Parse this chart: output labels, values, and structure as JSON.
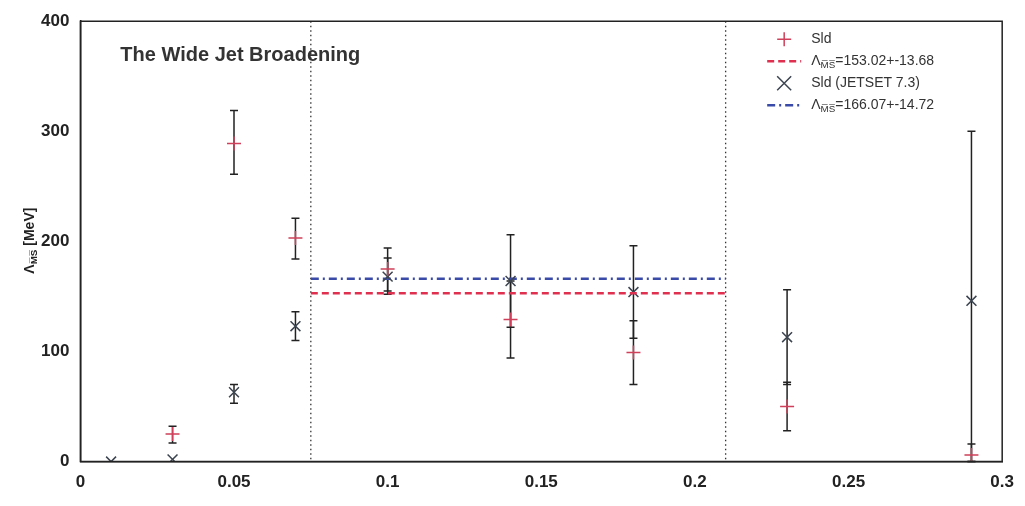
{
  "chart_data": {
    "type": "scatter",
    "title": "The Wide Jet Broadening",
    "ylabel": "Λ$_{M̅S̅}$ [MeV]",
    "xlim": [
      0,
      0.3
    ],
    "xticks": [
      0,
      0.05,
      0.1,
      0.15,
      0.2,
      0.25,
      0.3
    ],
    "ylim": [
      0,
      400
    ],
    "yticks": [
      0,
      100,
      200,
      300,
      400
    ],
    "grid": false,
    "legend": "top right",
    "series": [
      {
        "name": "Sld",
        "marker": "cross",
        "color": "#d0405a",
        "x": [
          0.03,
          0.05,
          0.07,
          0.1,
          0.14,
          0.18,
          0.23,
          0.29
        ],
        "values": [
          25,
          289,
          203,
          175,
          129,
          99,
          50,
          6
        ],
        "errors": [
          [
            17,
            32
          ],
          [
            261,
            319
          ],
          [
            184,
            221
          ],
          [
            155,
            194
          ],
          [
            94,
            164
          ],
          [
            70,
            128
          ],
          [
            28,
            72
          ],
          [
            0,
            16
          ]
        ]
      },
      {
        "name": "Λ$_{M̅S̅}$=153.02+-13.68",
        "type": "line",
        "line_style": "dashed",
        "color": "#e03050",
        "x": [
          0.075,
          0.21
        ],
        "values": [
          153.02,
          153.02
        ]
      },
      {
        "name": "Sld (JETSET 7.3)",
        "marker": "x",
        "color": "#3c4450",
        "x": [
          0.01,
          0.03,
          0.05,
          0.07,
          0.1,
          0.14,
          0.18,
          0.23,
          0.29
        ],
        "values": [
          0,
          2,
          63,
          123,
          168,
          164,
          154,
          113,
          146
        ],
        "errors": [
          null,
          null,
          [
            53,
            70
          ],
          [
            110,
            136
          ],
          [
            152,
            185
          ],
          [
            122,
            206
          ],
          [
            112,
            196
          ],
          [
            70,
            156
          ],
          [
            0,
            300
          ]
        ]
      },
      {
        "name": "Λ$_{M̅S̅}$=166.07+-14.72",
        "type": "line",
        "line_style": "dashdot",
        "color": "#3a4aa8",
        "x": [
          0.075,
          0.21
        ],
        "values": [
          166.07,
          166.07
        ]
      }
    ],
    "ref_lines": [
      {
        "axis": "x",
        "value": 0.075,
        "line_style": "dotted",
        "color": "#333333"
      },
      {
        "axis": "x",
        "value": 0.21,
        "line_style": "dotted",
        "color": "#333333"
      }
    ]
  }
}
